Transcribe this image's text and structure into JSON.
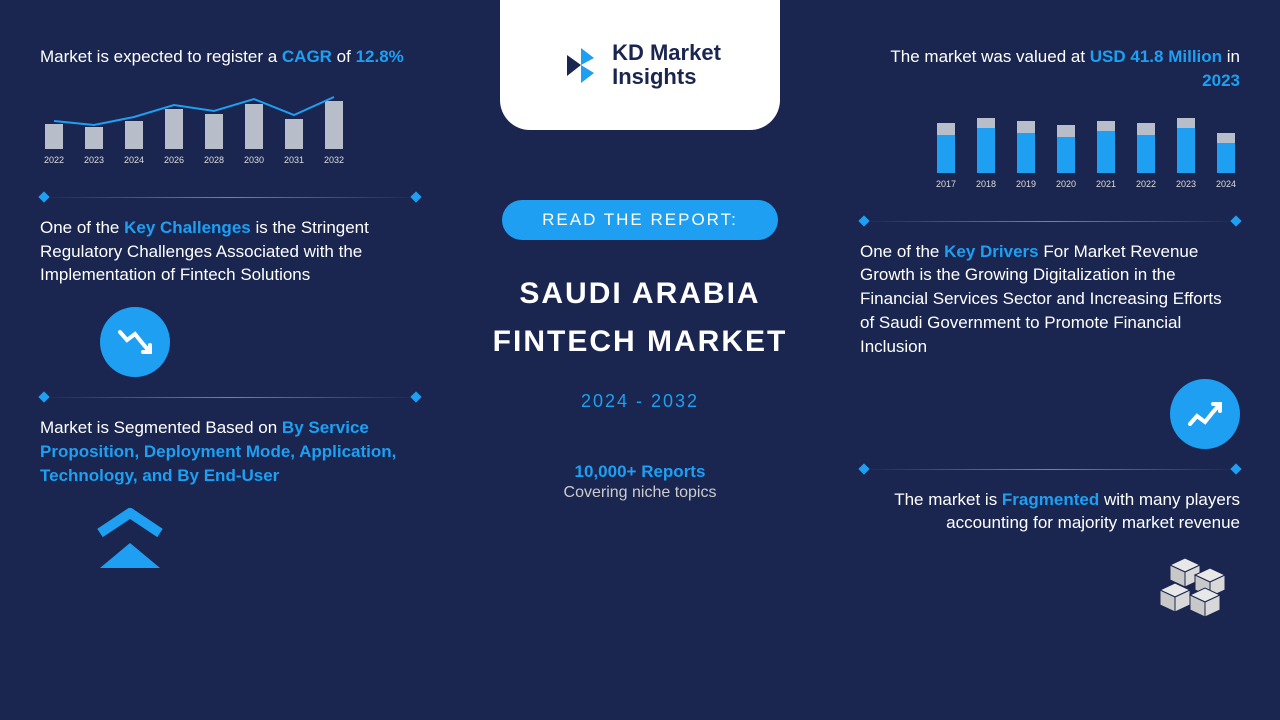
{
  "logo": {
    "brand_line1": "KD Market",
    "brand_line2": "Insights",
    "accent_color": "#1e9ff2",
    "text_color": "#1a2650"
  },
  "center": {
    "read_label": "READ THE REPORT:",
    "title_line1": "SAUDI ARABIA",
    "title_line2": "FINTECH MARKET",
    "year_range": "2024 - 2032",
    "reports_count": "10,000+ Reports",
    "reports_sub": "Covering niche topics"
  },
  "left": {
    "cagr_prefix": "Market is expected to register a ",
    "cagr_label": "CAGR",
    "cagr_mid": " of ",
    "cagr_value": "12.8%",
    "chart": {
      "type": "bar+line",
      "years": [
        "2022",
        "2023",
        "2024",
        "2026",
        "2028",
        "2030",
        "2031",
        "2032"
      ],
      "bar_heights": [
        25,
        22,
        28,
        40,
        35,
        45,
        30,
        48
      ],
      "bar_color": "#b8bec9",
      "line_color": "#1e9ff2",
      "line_points": [
        28,
        24,
        32,
        44,
        38,
        50,
        34,
        52
      ]
    },
    "challenges_prefix": "One of the ",
    "challenges_hl": "Key Challenges",
    "challenges_rest": " is the Stringent Regulatory Challenges Associated with the Implementation of Fintech Solutions",
    "segment_prefix": "Market is Segmented Based on ",
    "segment_hl": "By Service Proposition, Deployment Mode, Application, Technology, and By End-User"
  },
  "right": {
    "value_prefix": "The market was valued at ",
    "value_hl": "USD 41.8 Million",
    "value_mid": " in ",
    "value_year": "2023",
    "chart": {
      "type": "stacked-bar",
      "years": [
        "2017",
        "2018",
        "2019",
        "2020",
        "2021",
        "2022",
        "2023",
        "2024"
      ],
      "blue_heights": [
        38,
        45,
        40,
        36,
        42,
        38,
        45,
        30
      ],
      "grey_heights": [
        12,
        10,
        12,
        12,
        10,
        12,
        10,
        10
      ],
      "blue_color": "#1e9ff2",
      "grey_color": "#b8bec9"
    },
    "drivers_prefix": "One of the ",
    "drivers_hl": "Key Drivers",
    "drivers_rest": " For Market Revenue Growth is the Growing Digitalization in the Financial Services Sector and Increasing Efforts of Saudi Government to Promote Financial Inclusion",
    "frag_prefix": "The market is ",
    "frag_hl": "Fragmented",
    "frag_rest": " with many players accounting for majority market revenue"
  },
  "colors": {
    "bg": "#1a2650",
    "accent": "#1e9ff2",
    "text": "#ffffff",
    "bar_grey": "#b8bec9"
  }
}
